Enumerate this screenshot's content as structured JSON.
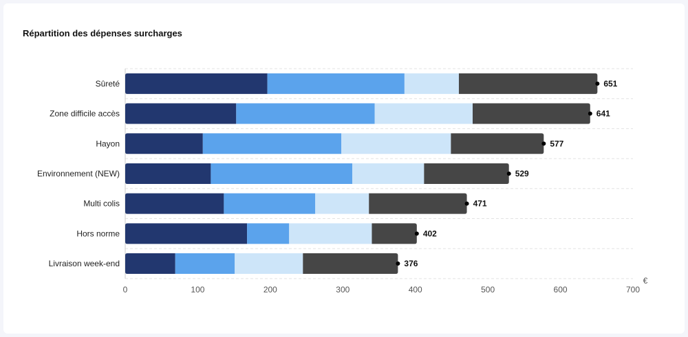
{
  "chart_data": {
    "type": "bar",
    "orientation": "horizontal",
    "stacked": true,
    "title": "Répartition des dépenses surcharges",
    "unit": "€",
    "categories": [
      "Sûreté",
      "Zone difficile accès",
      "Hayon",
      "Environnement (NEW)",
      "Multi colis",
      "Hors norme",
      "Livraison week-end"
    ],
    "series": [
      {
        "values": [
          196,
          153,
          107,
          118,
          136,
          168,
          69
        ],
        "color": "#22376f"
      },
      {
        "values": [
          189,
          191,
          191,
          195,
          126,
          58,
          82
        ],
        "color": "#5ba3ec"
      },
      {
        "values": [
          75,
          135,
          151,
          99,
          74,
          114,
          94
        ],
        "color": "#cde5f9"
      },
      {
        "values": [
          191,
          162,
          128,
          117,
          135,
          62,
          131
        ],
        "color": "#464646"
      }
    ],
    "totals": [
      651,
      641,
      577,
      529,
      471,
      402,
      376
    ],
    "xlim": [
      0,
      700
    ],
    "xticks": [
      0,
      100,
      200,
      300,
      400,
      500,
      600,
      700
    ],
    "grid": true
  }
}
